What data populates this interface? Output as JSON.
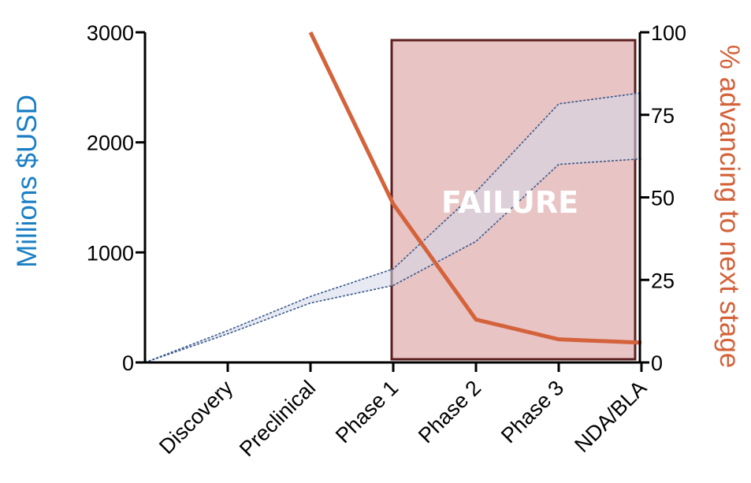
{
  "chart_data": {
    "type": "line",
    "categories": [
      "Discovery",
      "Preclinical",
      "Phase 1",
      "Phase 2",
      "Phase 3",
      "NDA/BLA"
    ],
    "x_start_value": 0,
    "left_axis": {
      "label": "Millions $USD",
      "color": "#1a7fc4",
      "ylim": [
        0,
        3000
      ],
      "ticks": [
        0,
        1000,
        2000,
        3000
      ],
      "tick_labels": [
        "0",
        "1000",
        "2000",
        "3000"
      ]
    },
    "right_axis": {
      "label": "% advancing to next stage",
      "color": "#d4623a",
      "ylim": [
        0,
        100
      ],
      "ticks": [
        0,
        25,
        50,
        75,
        100
      ],
      "tick_labels": [
        "0",
        "25",
        "50",
        "75",
        "100"
      ]
    },
    "cost_band": {
      "axis": "left",
      "upper_values": [
        0,
        290,
        600,
        850,
        1550,
        2350,
        2450
      ],
      "lower_values": [
        0,
        260,
        540,
        700,
        1100,
        1800,
        1850
      ],
      "fill_color": "#d4d9ea",
      "line_color": "#3a5a8c"
    },
    "advancing_series": {
      "axis": "right",
      "x_positions": [
        2,
        3,
        4,
        5,
        6
      ],
      "values": [
        100,
        48,
        13,
        7,
        6
      ],
      "color": "#d4623a"
    },
    "failure_region": {
      "label": "FAILURE",
      "from_category": "Phase 1",
      "to_category": "NDA/BLA",
      "fill_color": "#e8c4c4",
      "border_color": "#5c1f1f"
    },
    "grid": false
  }
}
